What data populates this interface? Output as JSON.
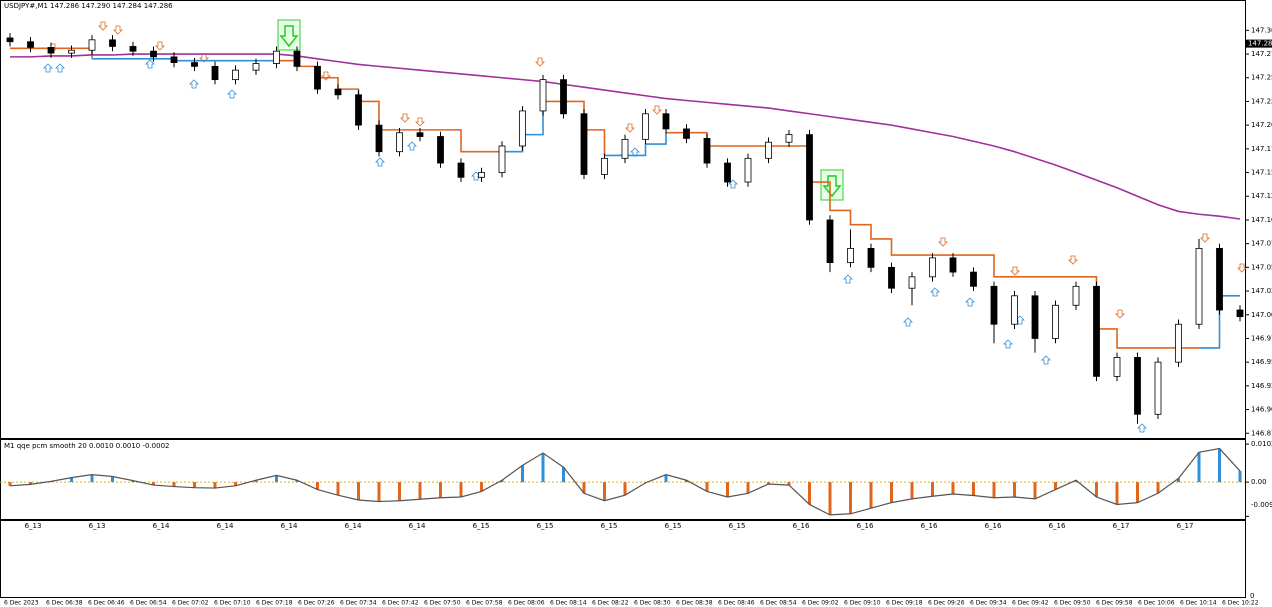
{
  "chart_data": [
    {
      "type": "candlestick",
      "title": "USDJPY#,M1 147.286 147.290 147.284 147.286",
      "ylim": [
        146.87,
        147.332
      ],
      "yticks": [
        {
          "value": 147.3,
          "label": "147.300"
        },
        147.275,
        {
          "value": 147.25,
          "label": "147.250"
        },
        147.225,
        {
          "value": 147.2,
          "label": "147.200"
        },
        147.175,
        {
          "value": 147.15,
          "label": "147.150"
        },
        147.125,
        {
          "value": 147.1,
          "label": "147.100"
        },
        147.075,
        {
          "value": 147.05,
          "label": "147.050"
        },
        147.025,
        {
          "value": 147.0,
          "label": "147.000"
        },
        146.975,
        {
          "value": 146.95,
          "label": "146.950"
        },
        146.925,
        {
          "value": 146.9,
          "label": "146.900"
        },
        146.875
      ],
      "price_label": 147.286,
      "bull_color": "#ffffff",
      "bear_color": "#000000",
      "wick_color": "#000000",
      "open": [
        147.292,
        147.288,
        147.282,
        147.276,
        147.279,
        147.29,
        147.283,
        147.278,
        147.272,
        147.266,
        147.262,
        147.248,
        147.258,
        147.265,
        147.278,
        147.262,
        147.238,
        147.232,
        147.2,
        147.172,
        147.192,
        147.188,
        147.16,
        147.145,
        147.15,
        147.178,
        147.215,
        147.248,
        147.212,
        147.148,
        147.165,
        147.185,
        147.212,
        147.196,
        147.186,
        147.16,
        147.14,
        147.165,
        147.182,
        147.19,
        147.1,
        147.055,
        147.07,
        147.05,
        147.028,
        147.04,
        147.06,
        147.045,
        147.03,
        146.99,
        147.02,
        146.975,
        147.01,
        147.03,
        146.935,
        146.955,
        146.895,
        146.95,
        146.99,
        147.07,
        147.005
      ],
      "high": [
        147.297,
        147.293,
        147.287,
        147.284,
        147.295,
        147.295,
        147.288,
        147.283,
        147.277,
        147.271,
        147.267,
        147.263,
        147.27,
        147.283,
        147.283,
        147.267,
        147.243,
        147.237,
        147.205,
        147.197,
        147.197,
        147.193,
        147.165,
        147.155,
        147.183,
        147.22,
        147.253,
        147.253,
        147.217,
        147.17,
        147.19,
        147.217,
        147.217,
        147.201,
        147.191,
        147.165,
        147.17,
        147.187,
        147.195,
        147.195,
        147.105,
        147.09,
        147.075,
        147.055,
        147.045,
        147.065,
        147.065,
        147.05,
        147.035,
        147.025,
        147.025,
        147.015,
        147.035,
        147.035,
        146.96,
        146.96,
        146.955,
        146.995,
        147.08,
        147.075,
        147.01
      ],
      "low": [
        147.283,
        147.277,
        147.271,
        147.271,
        147.274,
        147.278,
        147.273,
        147.267,
        147.261,
        147.257,
        147.243,
        147.243,
        147.253,
        147.26,
        147.257,
        147.233,
        147.227,
        147.195,
        147.167,
        147.167,
        147.183,
        147.155,
        147.14,
        147.14,
        147.145,
        147.173,
        147.21,
        147.207,
        147.143,
        147.143,
        147.16,
        147.18,
        147.191,
        147.181,
        147.155,
        147.135,
        147.135,
        147.16,
        147.177,
        147.095,
        147.045,
        147.05,
        147.045,
        147.023,
        147.01,
        147.035,
        147.04,
        147.025,
        146.97,
        146.985,
        146.96,
        146.97,
        147.005,
        146.93,
        146.93,
        146.885,
        146.89,
        146.945,
        146.985,
        147.0,
        146.993
      ],
      "close": [
        147.288,
        147.282,
        147.276,
        147.279,
        147.29,
        147.283,
        147.278,
        147.272,
        147.266,
        147.262,
        147.248,
        147.258,
        147.265,
        147.278,
        147.262,
        147.238,
        147.232,
        147.2,
        147.172,
        147.192,
        147.188,
        147.16,
        147.145,
        147.15,
        147.178,
        147.215,
        147.248,
        147.212,
        147.148,
        147.165,
        147.185,
        147.212,
        147.196,
        147.186,
        147.16,
        147.14,
        147.165,
        147.182,
        147.19,
        147.1,
        147.055,
        147.07,
        147.05,
        147.028,
        147.04,
        147.06,
        147.045,
        147.03,
        146.99,
        147.02,
        146.975,
        147.01,
        147.03,
        146.935,
        146.955,
        146.895,
        146.95,
        146.99,
        147.07,
        147.005,
        146.998
      ],
      "lines": [
        {
          "color": "#e0661e",
          "step": true,
          "values": [
            147.281,
            147.281,
            147.281,
            147.281,
            147.27,
            null,
            null,
            null,
            null,
            null,
            null,
            null,
            null,
            147.268,
            147.262,
            147.25,
            147.238,
            147.225,
            147.195,
            147.195,
            147.195,
            147.195,
            147.172,
            147.172,
            147.172,
            null,
            147.225,
            147.225,
            147.195,
            147.168,
            null,
            null,
            147.192,
            147.192,
            147.178,
            147.178,
            147.178,
            147.178,
            147.178,
            147.14,
            147.11,
            147.095,
            147.08,
            147.063,
            147.063,
            147.063,
            147.063,
            147.063,
            147.04,
            147.04,
            147.04,
            147.04,
            147.04,
            146.985,
            146.965,
            146.965,
            146.965,
            146.965,
            146.965,
            null,
            null
          ]
        },
        {
          "color": "#2f8fd8",
          "step": true,
          "values": [
            null,
            null,
            null,
            null,
            147.27,
            147.27,
            147.27,
            147.27,
            147.268,
            147.268,
            147.268,
            147.268,
            147.268,
            147.268,
            null,
            null,
            null,
            null,
            null,
            null,
            null,
            null,
            null,
            null,
            147.172,
            147.19,
            147.225,
            null,
            null,
            147.168,
            147.168,
            147.18,
            147.192,
            null,
            null,
            null,
            null,
            null,
            null,
            null,
            null,
            null,
            null,
            null,
            null,
            null,
            null,
            null,
            null,
            null,
            null,
            null,
            null,
            null,
            null,
            null,
            null,
            null,
            146.965,
            147.02,
            147.02
          ]
        },
        {
          "color": "#a0309a",
          "step": false,
          "values": [
            147.272,
            147.272,
            147.273,
            147.273,
            147.274,
            147.274,
            147.275,
            147.275,
            147.275,
            147.275,
            147.275,
            147.275,
            147.275,
            147.275,
            147.273,
            147.27,
            147.267,
            147.264,
            147.262,
            147.26,
            147.258,
            147.256,
            147.254,
            147.252,
            147.25,
            147.248,
            147.246,
            147.243,
            147.24,
            147.237,
            147.234,
            147.231,
            147.228,
            147.226,
            147.224,
            147.222,
            147.22,
            147.218,
            147.215,
            147.212,
            147.209,
            147.206,
            147.203,
            147.2,
            147.196,
            147.192,
            147.188,
            147.183,
            147.178,
            147.172,
            147.165,
            147.158,
            147.15,
            147.142,
            147.134,
            147.125,
            147.116,
            147.109,
            147.106,
            147.104,
            147.101
          ]
        }
      ],
      "time_labels": [
        "6 Dec 2023",
        "6 Dec 06:38",
        "6 Dec 06:46",
        "6 Dec 06:54",
        "6 Dec 07:02",
        "6 Dec 07:10",
        "6 Dec 07:18",
        "6 Dec 07:26",
        "6 Dec 07:34",
        "6 Dec 07:42",
        "6 Dec 07:50",
        "6 Dec 07:58",
        "6 Dec 08:06",
        "6 Dec 08:14",
        "6 Dec 08:22",
        "6 Dec 08:30",
        "6 Dec 08:38",
        "6 Dec 08:46",
        "6 Dec 08:54",
        "6 Dec 09:02",
        "6 Dec 09:10",
        "6 Dec 09:18",
        "6 Dec 09:26",
        "6 Dec 09:34",
        "6 Dec 09:42",
        "6 Dec 09:50",
        "6 Dec 09:58",
        "6 Dec 10:06",
        "6 Dec 10:14",
        "6 Dec 10:22"
      ]
    },
    {
      "type": "histogram-line",
      "title": "M1  qqe pcm smooth  20 0.0010 0.0010 -0.0002",
      "ylim": [
        -0.0099,
        0.0113
      ],
      "yticks": [
        0.0102,
        {
          "value": 0,
          "label": "0.00"
        },
        -0.0092
      ],
      "pos_color": "#2f8fd8",
      "neg_color": "#e0661e",
      "line_color": "#555555",
      "values": [
        -0.001,
        -0.0006,
        0.0002,
        0.0012,
        0.002,
        0.0015,
        0.0004,
        -0.0008,
        -0.0012,
        -0.0015,
        -0.0016,
        -0.001,
        0.0005,
        0.0018,
        0.0005,
        -0.002,
        -0.0035,
        -0.0048,
        -0.0052,
        -0.005,
        -0.0046,
        -0.0042,
        -0.004,
        -0.0025,
        0.0005,
        0.0045,
        0.0078,
        0.004,
        -0.003,
        -0.005,
        -0.0035,
        -0.0002,
        0.002,
        0.0005,
        -0.0025,
        -0.004,
        -0.003,
        -0.0005,
        -0.0008,
        -0.006,
        -0.0088,
        -0.0085,
        -0.007,
        -0.0055,
        -0.0045,
        -0.0038,
        -0.0032,
        -0.0036,
        -0.0042,
        -0.004,
        -0.0045,
        -0.002,
        0.0005,
        -0.004,
        -0.006,
        -0.0055,
        -0.003,
        0.001,
        0.008,
        0.009,
        0.003
      ],
      "x_labels": [
        "6_13",
        "6_13",
        "6_14",
        "6_14",
        "6_14",
        "6_14",
        "6_14",
        "6_15",
        "6_15",
        "6_15",
        "6_15",
        "6_15",
        "6_16",
        "6_16",
        "6_16",
        "6_16",
        "6_16",
        "6_17",
        "6_17"
      ],
      "bottom_panel_tick": "0"
    }
  ]
}
